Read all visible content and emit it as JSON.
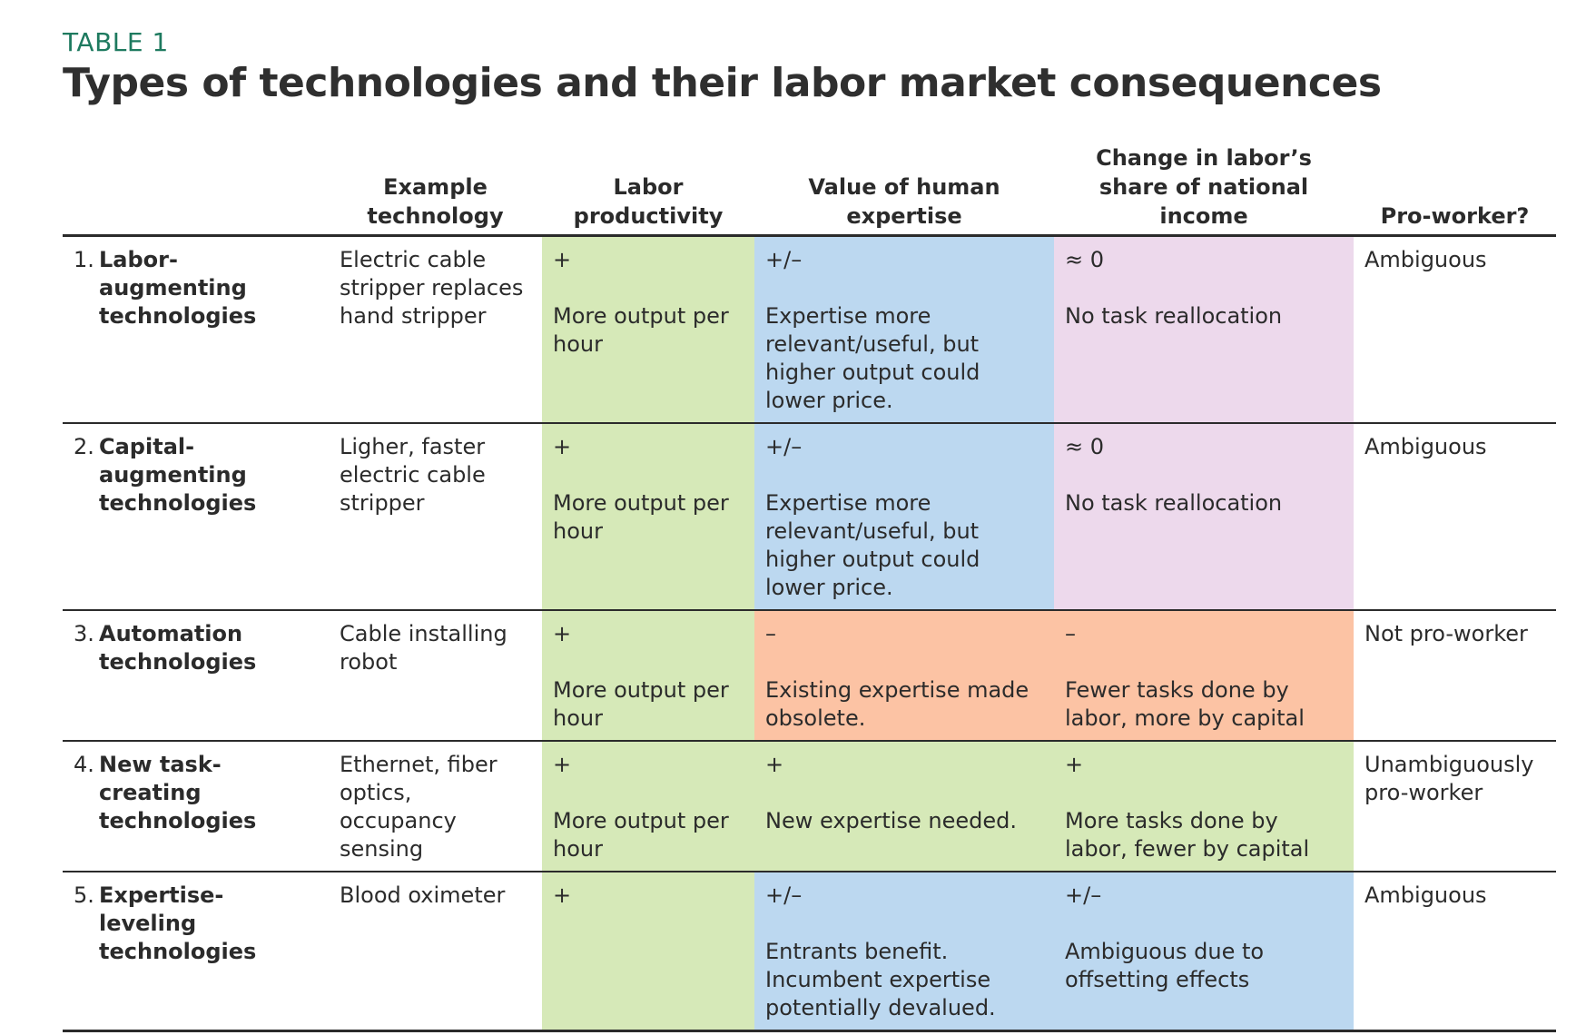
{
  "label": "TABLE 1",
  "title": "Types of technologies and their labor market consequences",
  "colors": {
    "positive": "#d6e9b8",
    "ambiguous": "#bcd8f0",
    "neutral": "#edd9ec",
    "negative": "#fcc3a4",
    "label": "#1e7a5f"
  },
  "headers": {
    "type": "",
    "example": "Example technology",
    "productivity": "Labor productivity",
    "expertise": "Value of human expertise",
    "share": "Change in labor’s share of national income",
    "proworker": "Pro-worker?"
  },
  "rows": [
    {
      "num": "1.",
      "name": "Labor-augmenting technologies",
      "example": "Electric cable stripper replaces hand stripper",
      "productivity": {
        "sign": "+",
        "text": "More output per hour",
        "color": "green"
      },
      "expertise": {
        "sign": "+/–",
        "text": "Expertise more relevant/useful, but higher output could lower price.",
        "color": "blue"
      },
      "share": {
        "sign": "≈ 0",
        "text": "No task reallocation",
        "color": "pink"
      },
      "proworker": "Ambiguous"
    },
    {
      "num": "2.",
      "name": "Capital-augmenting technologies",
      "example": "Ligher, faster electric cable stripper",
      "productivity": {
        "sign": "+",
        "text": "More output per hour",
        "color": "green"
      },
      "expertise": {
        "sign": "+/–",
        "text": "Expertise more relevant/useful, but higher output could lower price.",
        "color": "blue"
      },
      "share": {
        "sign": "≈ 0",
        "text": "No task reallocation",
        "color": "pink"
      },
      "proworker": "Ambiguous"
    },
    {
      "num": "3.",
      "name": "Automation technologies",
      "example": "Cable installing robot",
      "productivity": {
        "sign": "+",
        "text": "More output per hour",
        "color": "green"
      },
      "expertise": {
        "sign": "–",
        "text": "Existing expertise made obsolete.",
        "color": "orange"
      },
      "share": {
        "sign": "–",
        "text": "Fewer tasks done by labor, more by capital",
        "color": "orange"
      },
      "proworker": "Not pro-worker"
    },
    {
      "num": "4.",
      "name": "New task-creating technologies",
      "example": "Ethernet, fiber optics, occupancy sensing",
      "productivity": {
        "sign": "+",
        "text": "More output per hour",
        "color": "green"
      },
      "expertise": {
        "sign": "+",
        "text": "New expertise needed.",
        "color": "green"
      },
      "share": {
        "sign": "+",
        "text": "More tasks done by labor, fewer by capital",
        "color": "green"
      },
      "proworker": "Unambiguously pro-worker"
    },
    {
      "num": "5.",
      "name": "Expertise-leveling technologies",
      "example": "Blood oximeter",
      "productivity": {
        "sign": "+",
        "text": "",
        "color": "green"
      },
      "expertise": {
        "sign": "+/–",
        "text": "Entrants benefit. Incumbent expertise potentially devalued.",
        "color": "blue"
      },
      "share": {
        "sign": "+/–",
        "text": "Ambiguous due to offsetting effects",
        "color": "blue"
      },
      "proworker": "Ambiguous"
    }
  ]
}
